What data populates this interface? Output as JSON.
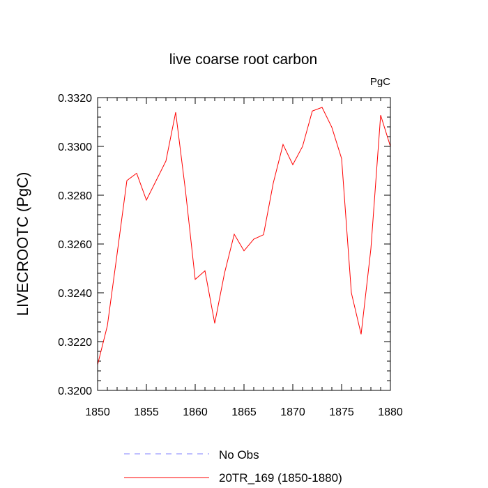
{
  "chart_data": {
    "type": "line",
    "title": "live coarse root carbon",
    "units": "PgC",
    "xlabel": "",
    "ylabel": "LIVECROOTC  (PgC)",
    "xlim": [
      1850,
      1880
    ],
    "ylim": [
      0.32,
      0.332
    ],
    "x_ticks": [
      1850,
      1855,
      1860,
      1865,
      1870,
      1875,
      1880
    ],
    "x_tick_labels": [
      "1850",
      "1855",
      "1860",
      "1865",
      "1870",
      "1875",
      "1880"
    ],
    "y_ticks": [
      0.32,
      0.322,
      0.324,
      0.326,
      0.328,
      0.33,
      0.332
    ],
    "y_tick_labels": [
      "0.3200",
      "0.3220",
      "0.3240",
      "0.3260",
      "0.3280",
      "0.3300",
      "0.3320"
    ],
    "legend_position": "bottom",
    "series": [
      {
        "name": "No Obs",
        "color": "#8080ff",
        "style": "dashed",
        "x": [],
        "values": []
      },
      {
        "name": "20TR_169 (1850-1880)",
        "color": "#ff0000",
        "style": "solid",
        "x": [
          1850,
          1851,
          1852,
          1853,
          1854,
          1855,
          1856,
          1857,
          1858,
          1859,
          1860,
          1861,
          1862,
          1863,
          1864,
          1865,
          1866,
          1867,
          1868,
          1869,
          1870,
          1871,
          1872,
          1873,
          1874,
          1875,
          1876,
          1877,
          1878,
          1879,
          1880
        ],
        "values": [
          0.32105,
          0.32265,
          0.3256,
          0.3286,
          0.3289,
          0.3278,
          0.3286,
          0.3294,
          0.3314,
          0.3282,
          0.32455,
          0.3249,
          0.32275,
          0.3248,
          0.3264,
          0.32572,
          0.3262,
          0.32638,
          0.3285,
          0.33008,
          0.32925,
          0.33,
          0.33145,
          0.3316,
          0.33078,
          0.3295,
          0.324,
          0.3223,
          0.3258,
          0.33128,
          0.33
        ]
      }
    ]
  }
}
